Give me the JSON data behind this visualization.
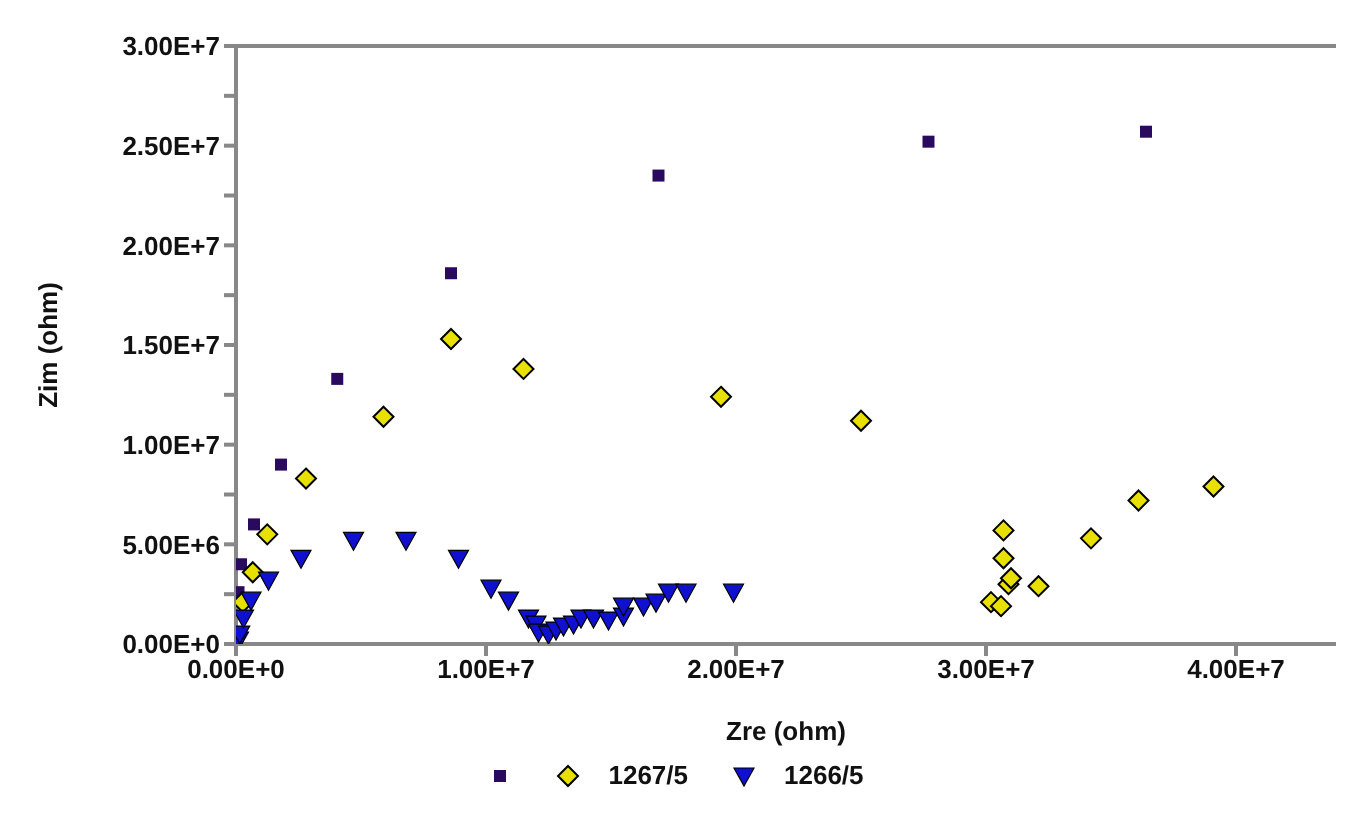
{
  "chart_data": {
    "type": "scatter",
    "xlabel": "Zre (ohm)",
    "ylabel": "Zim (ohm)",
    "xlim": [
      0,
      44000000
    ],
    "xticks": [
      {
        "value": 0,
        "label": "0.00E+0"
      },
      {
        "value": 10000000,
        "label": "1.00E+7"
      },
      {
        "value": 20000000,
        "label": "2.00E+7"
      },
      {
        "value": 30000000,
        "label": "3.00E+7"
      },
      {
        "value": 40000000,
        "label": "4.00E+7"
      }
    ],
    "ylim": [
      0,
      30000000
    ],
    "yticks": [
      {
        "value": 0,
        "label": "0.00E+0"
      },
      {
        "value": 2500000,
        "label": null
      },
      {
        "value": 5000000,
        "label": "5.00E+6"
      },
      {
        "value": 7500000,
        "label": null
      },
      {
        "value": 10000000,
        "label": "1.00E+7"
      },
      {
        "value": 12500000,
        "label": null
      },
      {
        "value": 15000000,
        "label": "1.50E+7"
      },
      {
        "value": 17500000,
        "label": null
      },
      {
        "value": 20000000,
        "label": "2.00E+7"
      },
      {
        "value": 22500000,
        "label": null
      },
      {
        "value": 25000000,
        "label": "2.50E+7"
      },
      {
        "value": 27500000,
        "label": null
      },
      {
        "value": 30000000,
        "label": "3.00E+7"
      }
    ],
    "grid": false,
    "legend": "bottom",
    "series": [
      {
        "color": "#2a0a5e",
        "marker": "square",
        "x": [
          100000,
          200000,
          720000,
          1800000,
          4050000,
          8600000,
          16900000,
          27700000,
          36400000
        ],
        "values": [
          2600000,
          4000000,
          6000000,
          9000000,
          13300000,
          18600000,
          23500000,
          25200000,
          25700000
        ]
      },
      {
        "name": "1267/5",
        "color": "#e8e000",
        "marker": "diamond",
        "x": [
          270000,
          670000,
          1250000,
          2800000,
          5900000,
          8600000,
          11500000,
          19400000,
          25000000,
          30200000,
          30600000,
          30900000,
          31000000,
          30700000,
          30700000,
          32100000,
          34200000,
          36100000,
          39100000
        ],
        "values": [
          2100000,
          3600000,
          5500000,
          8300000,
          11400000,
          15300000,
          13800000,
          12400000,
          11200000,
          2100000,
          1900000,
          3000000,
          3300000,
          4300000,
          5700000,
          2900000,
          5300000,
          7200000,
          7900000
        ]
      },
      {
        "name": "1266/5",
        "color": "#1010d0",
        "marker": "triangle",
        "x": [
          100000,
          150000,
          300000,
          600000,
          1300000,
          2600000,
          4700000,
          6800000,
          8900000,
          10200000,
          10900000,
          11700000,
          12000000,
          12100000,
          12500000,
          12800000,
          13100000,
          13500000,
          13800000,
          14300000,
          14900000,
          15500000,
          15500000,
          16300000,
          16800000,
          17300000,
          18000000,
          19900000
        ],
        "values": [
          200000,
          500000,
          1300000,
          2200000,
          3200000,
          4300000,
          5200000,
          5200000,
          4300000,
          2800000,
          2200000,
          1300000,
          1000000,
          600000,
          500000,
          700000,
          900000,
          1000000,
          1300000,
          1300000,
          1200000,
          1400000,
          1900000,
          1900000,
          2100000,
          2600000,
          2600000,
          2600000
        ]
      }
    ]
  }
}
